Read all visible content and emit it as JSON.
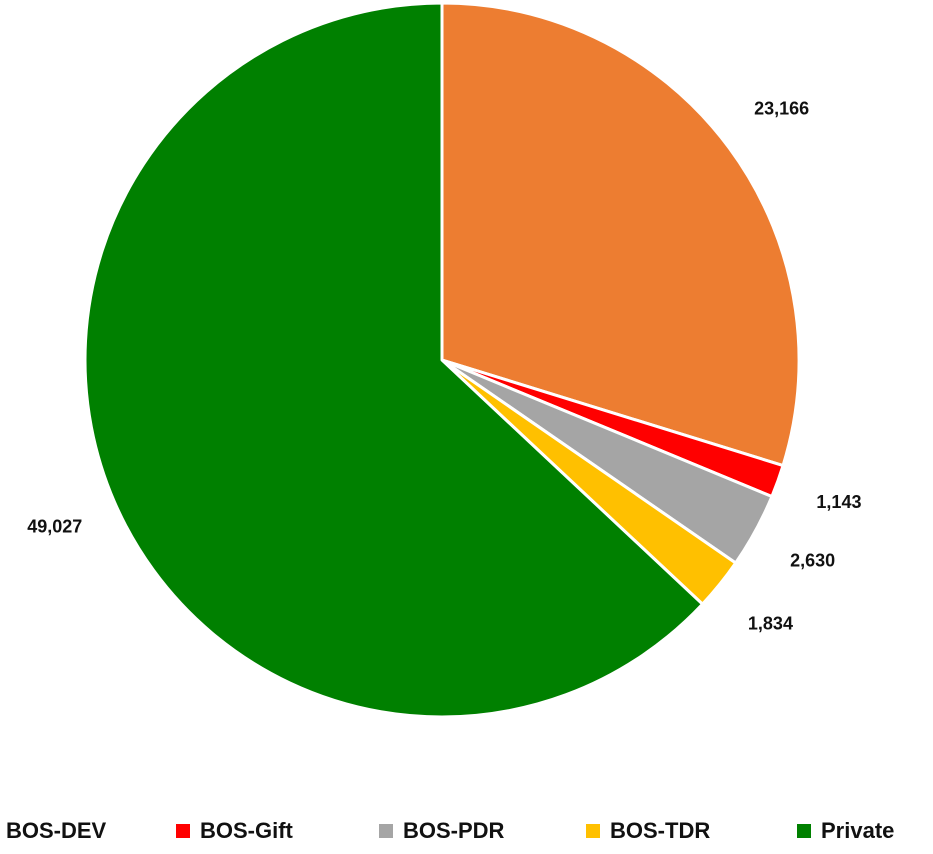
{
  "chart_data": {
    "type": "pie",
    "categories": [
      "BOS-DEV",
      "BOS-Gift",
      "BOS-PDR",
      "BOS-TDR",
      "Private"
    ],
    "values": [
      23166,
      1143,
      2630,
      1834,
      49027
    ],
    "value_labels": [
      "23,166",
      "1,143",
      "2,630",
      "1,834",
      "49,027"
    ],
    "colors": [
      "#ed7d31",
      "#ff0000",
      "#a5a5a5",
      "#ffc000",
      "#008000"
    ],
    "legend": "bottom"
  }
}
